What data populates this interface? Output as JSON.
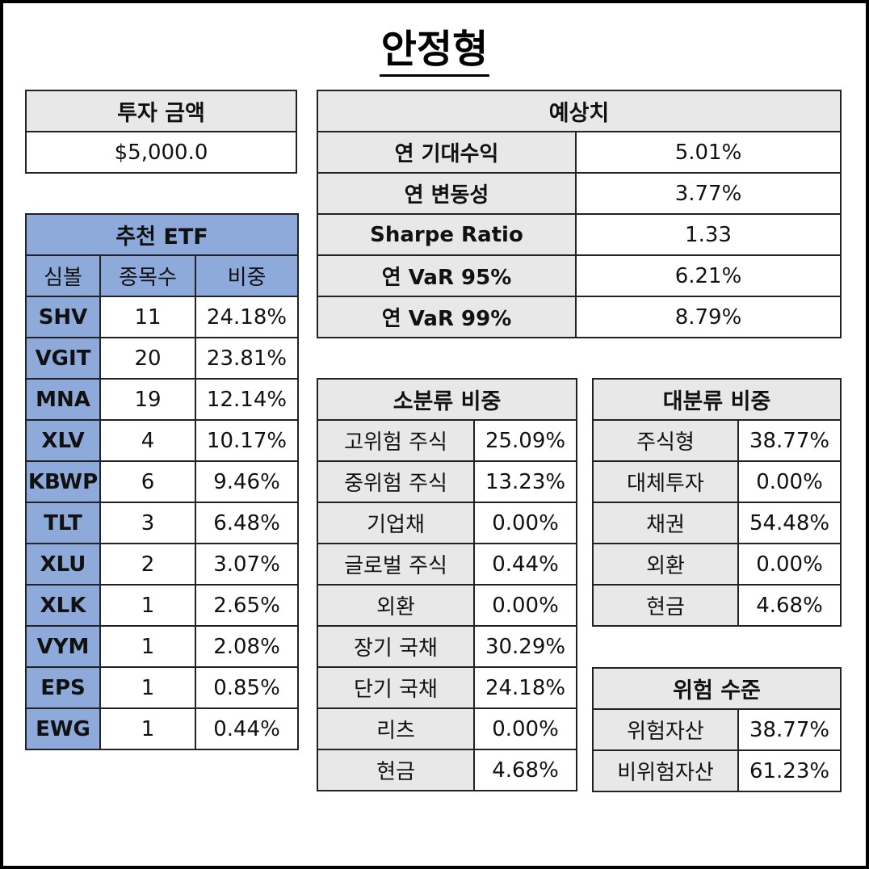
{
  "title": "안정형",
  "investment": {
    "header": "투자 금액",
    "amount": "$5,000.0"
  },
  "etf": {
    "header": "추천 ETF",
    "columns": [
      "심볼",
      "종목수",
      "비중"
    ],
    "rows": [
      {
        "symbol": "SHV",
        "count": "11",
        "weight": "24.18%"
      },
      {
        "symbol": "VGIT",
        "count": "20",
        "weight": "23.81%"
      },
      {
        "symbol": "MNA",
        "count": "19",
        "weight": "12.14%"
      },
      {
        "symbol": "XLV",
        "count": "4",
        "weight": "10.17%"
      },
      {
        "symbol": "KBWP",
        "count": "6",
        "weight": "9.46%"
      },
      {
        "symbol": "TLT",
        "count": "3",
        "weight": "6.48%"
      },
      {
        "symbol": "XLU",
        "count": "2",
        "weight": "3.07%"
      },
      {
        "symbol": "XLK",
        "count": "1",
        "weight": "2.65%"
      },
      {
        "symbol": "VYM",
        "count": "1",
        "weight": "2.08%"
      },
      {
        "symbol": "EPS",
        "count": "1",
        "weight": "0.85%"
      },
      {
        "symbol": "EWG",
        "count": "1",
        "weight": "0.44%"
      }
    ]
  },
  "forecast": {
    "header": "예상치",
    "rows": [
      {
        "label": "연 기대수익",
        "value": "5.01%"
      },
      {
        "label": "연 변동성",
        "value": "3.77%"
      },
      {
        "label": "Sharpe Ratio",
        "value": "1.33"
      },
      {
        "label": "연 VaR 95%",
        "value": "6.21%"
      },
      {
        "label": "연 VaR 99%",
        "value": "8.79%"
      }
    ]
  },
  "sub_class": {
    "header": "소분류 비중",
    "rows": [
      {
        "label": "고위험 주식",
        "value": "25.09%"
      },
      {
        "label": "중위험 주식",
        "value": "13.23%"
      },
      {
        "label": "기업채",
        "value": "0.00%"
      },
      {
        "label": "글로벌 주식",
        "value": "0.44%"
      },
      {
        "label": "외환",
        "value": "0.00%"
      },
      {
        "label": "장기 국채",
        "value": "30.29%"
      },
      {
        "label": "단기 국채",
        "value": "24.18%"
      },
      {
        "label": "리츠",
        "value": "0.00%"
      },
      {
        "label": "현금",
        "value": "4.68%"
      }
    ]
  },
  "major_class": {
    "header": "대분류 비중",
    "rows": [
      {
        "label": "주식형",
        "value": "38.77%"
      },
      {
        "label": "대체투자",
        "value": "0.00%"
      },
      {
        "label": "채권",
        "value": "54.48%"
      },
      {
        "label": "외환",
        "value": "0.00%"
      },
      {
        "label": "현금",
        "value": "4.68%"
      }
    ]
  },
  "risk_level": {
    "header": "위험 수준",
    "rows": [
      {
        "label": "위험자산",
        "value": "38.77%"
      },
      {
        "label": "비위험자산",
        "value": "61.23%"
      }
    ]
  }
}
